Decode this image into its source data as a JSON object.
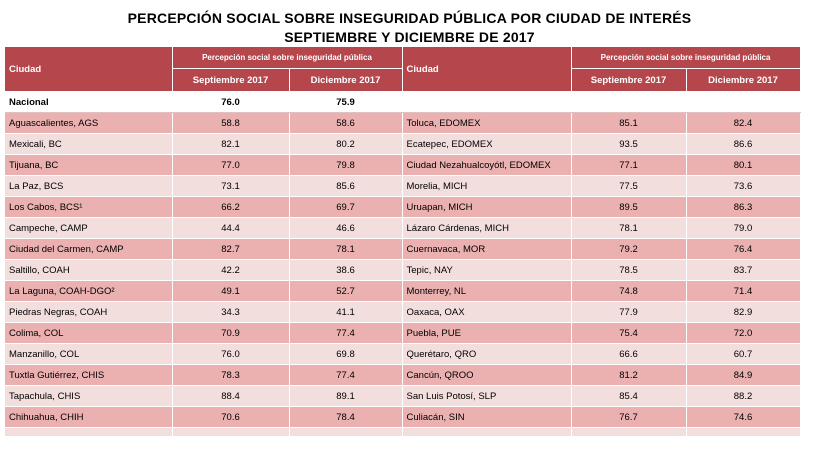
{
  "title_line1": "PERCEPCIÓN SOCIAL SOBRE INSEGURIDAD PÚBLICA POR CIUDAD DE INTERÉS",
  "title_line2": "SEPTIEMBRE Y DICIEMBRE DE 2017",
  "header": {
    "city_label": "Ciudad",
    "group_label": "Percepción social sobre inseguridad pública",
    "sep_label": "Septiembre 2017",
    "dic_label": "Diciembre 2017"
  },
  "nacional": {
    "city": "Nacional",
    "sep": "76.0",
    "dic": "75.9"
  },
  "left_rows": [
    {
      "city": "Aguascalientes, AGS",
      "sep": "58.8",
      "dic": "58.6"
    },
    {
      "city": "Mexicali, BC",
      "sep": "82.1",
      "dic": "80.2"
    },
    {
      "city": "Tijuana, BC",
      "sep": "77.0",
      "dic": "79.8"
    },
    {
      "city": "La Paz, BCS",
      "sep": "73.1",
      "dic": "85.6"
    },
    {
      "city": "Los Cabos, BCS¹",
      "sep": "66.2",
      "dic": "69.7"
    },
    {
      "city": "Campeche, CAMP",
      "sep": "44.4",
      "dic": "46.6"
    },
    {
      "city": "Ciudad del Carmen, CAMP",
      "sep": "82.7",
      "dic": "78.1"
    },
    {
      "city": "Saltillo, COAH",
      "sep": "42.2",
      "dic": "38.6"
    },
    {
      "city": "La Laguna, COAH-DGO²",
      "sep": "49.1",
      "dic": "52.7"
    },
    {
      "city": "Piedras Negras, COAH",
      "sep": "34.3",
      "dic": "41.1"
    },
    {
      "city": "Colima, COL",
      "sep": "70.9",
      "dic": "77.4"
    },
    {
      "city": "Manzanillo, COL",
      "sep": "76.0",
      "dic": "69.8"
    },
    {
      "city": "Tuxtla Gutiérrez, CHIS",
      "sep": "78.3",
      "dic": "77.4"
    },
    {
      "city": "Tapachula, CHIS",
      "sep": "88.4",
      "dic": "89.1"
    },
    {
      "city": "Chihuahua, CHIH",
      "sep": "70.6",
      "dic": "78.4"
    }
  ],
  "right_rows": [
    {
      "city": "Toluca, EDOMEX",
      "sep": "85.1",
      "dic": "82.4"
    },
    {
      "city": "Ecatepec, EDOMEX",
      "sep": "93.5",
      "dic": "86.6"
    },
    {
      "city": "Ciudad Nezahualcoyótl, EDOMEX",
      "sep": "77.1",
      "dic": "80.1"
    },
    {
      "city": "Morelia, MICH",
      "sep": "77.5",
      "dic": "73.6"
    },
    {
      "city": "Uruapan, MICH",
      "sep": "89.5",
      "dic": "86.3"
    },
    {
      "city": "Lázaro Cárdenas, MICH",
      "sep": "78.1",
      "dic": "79.0"
    },
    {
      "city": "Cuernavaca, MOR",
      "sep": "79.2",
      "dic": "76.4"
    },
    {
      "city": "Tepic, NAY",
      "sep": "78.5",
      "dic": "83.7"
    },
    {
      "city": "Monterrey, NL",
      "sep": "74.8",
      "dic": "71.4"
    },
    {
      "city": "Oaxaca, OAX",
      "sep": "77.9",
      "dic": "82.9"
    },
    {
      "city": "Puebla, PUE",
      "sep": "75.4",
      "dic": "72.0"
    },
    {
      "city": "Querétaro, QRO",
      "sep": "66.6",
      "dic": "60.7"
    },
    {
      "city": "Cancún, QROO",
      "sep": "81.2",
      "dic": "84.9"
    },
    {
      "city": "San Luis Potosí, SLP",
      "sep": "85.4",
      "dic": "88.2"
    },
    {
      "city": "Culiacán, SIN",
      "sep": "76.7",
      "dic": "74.6"
    }
  ],
  "colors": {
    "header_bg": "#b5464b",
    "row_light": "#f3dede",
    "row_dark": "#ebb0b0"
  }
}
